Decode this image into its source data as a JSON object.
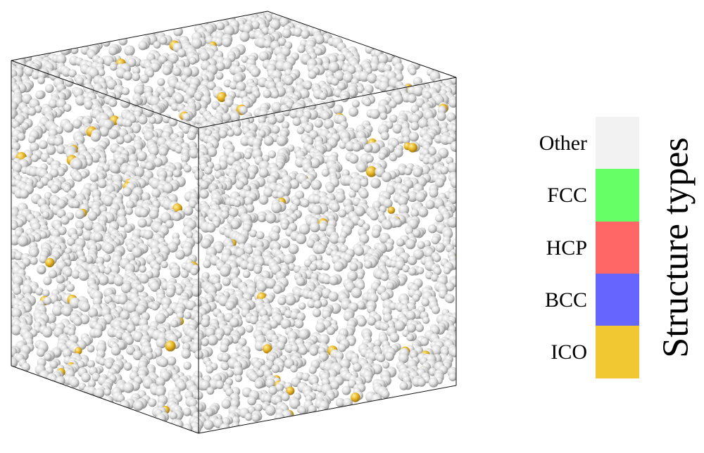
{
  "legend": {
    "title": "Structure types",
    "items": [
      {
        "label": "Other",
        "color": "#f2f2f2"
      },
      {
        "label": "FCC",
        "color": "#66ff66"
      },
      {
        "label": "HCP",
        "color": "#ff6666"
      },
      {
        "label": "BCC",
        "color": "#6666ff"
      },
      {
        "label": "ICO",
        "color": "#f2c832"
      }
    ]
  },
  "atom_colors": {
    "other": "#d9d9d9",
    "ico": "#e6b422"
  }
}
